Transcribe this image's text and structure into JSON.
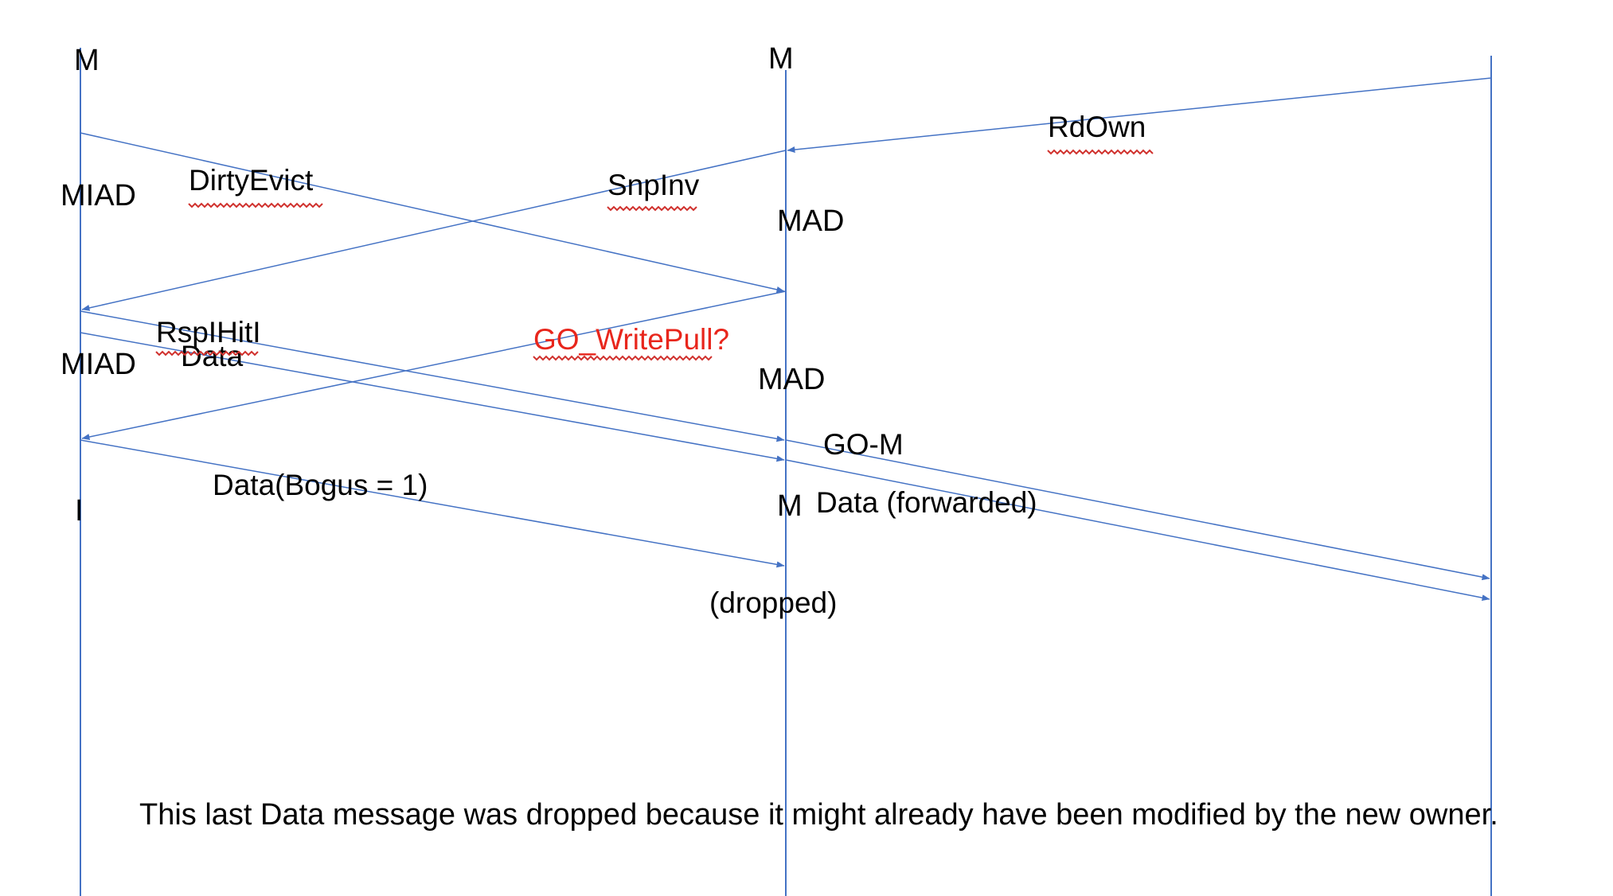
{
  "colors": {
    "line": "#4472c4",
    "text": "#000000",
    "highlight": "#e8261c",
    "spellcheck": "#d0312d"
  },
  "states": {
    "left_m": "M",
    "left_miad_1": "MIAD",
    "left_miad_2": "MIAD",
    "left_i": "I",
    "mid_m": "M",
    "mid_mad_1": "MAD",
    "mid_mad_2": "MAD",
    "mid_m_final": "M"
  },
  "messages": {
    "rdown": "RdOwn",
    "dirtyevict": "DirtyEvict",
    "snpinv": "SnpInv",
    "rsplhiti": "RspIHitI",
    "data": "Data",
    "go_writepull": "GO_WritePull?",
    "go_m": "GO-M",
    "data_bogus": "Data(Bogus = 1)",
    "data_forwarded": "Data (forwarded)",
    "dropped": "(dropped)"
  },
  "note": "This last Data message was dropped because it might already have been modified by the new owner."
}
